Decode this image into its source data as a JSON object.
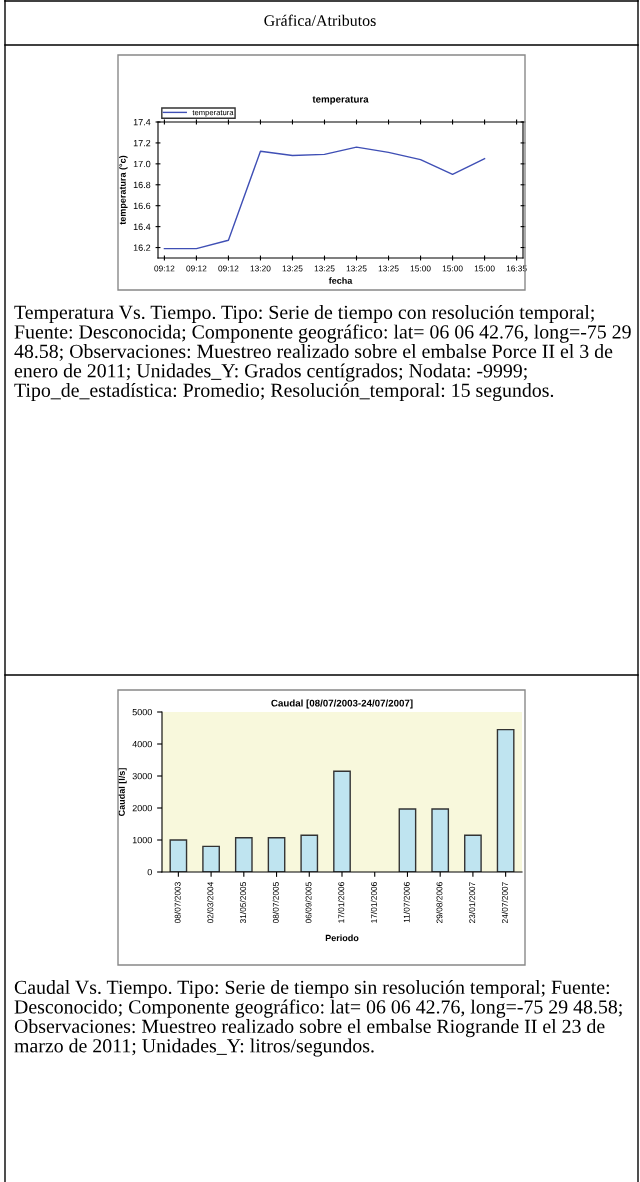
{
  "chart_data": [
    {
      "type": "line",
      "title": "temperatura",
      "xlabel": "fecha",
      "ylabel": "temperatura (°c)",
      "categories": [
        "09:12",
        "09:12",
        "09:12",
        "13:20",
        "13:25",
        "13:25",
        "13:25",
        "13:25",
        "15:00",
        "15:00",
        "15:00",
        "16:35"
      ],
      "series": [
        {
          "name": "temperatura",
          "color": "#3f4fb5",
          "values": [
            16.19,
            16.19,
            16.27,
            17.12,
            17.08,
            17.09,
            17.16,
            17.11,
            17.04,
            16.9,
            17.05,
            null
          ]
        }
      ],
      "ylim": [
        16.1,
        17.4
      ],
      "yticks": [
        {
          "value": 16.2,
          "label": "16.2"
        },
        {
          "value": 16.4,
          "label": "16.4"
        },
        {
          "value": 16.6,
          "label": "16.6"
        },
        {
          "value": 16.8,
          "label": "16.8"
        },
        {
          "value": 17.0,
          "label": "17.0"
        },
        {
          "value": 17.2,
          "label": "17.2"
        },
        {
          "value": 17.4,
          "label": "17.4"
        }
      ],
      "legend": "top left",
      "grid": false,
      "annotations": [
        "Gráfica/Atributos",
        "Temperatura Vs. Tiempo. Tipo: Serie de tiempo con resolución temporal; Fuente: Desconocida; Componente geográfico: lat= 06 06 42.76, long=-75 29 48.58; Observaciones: Muestreo realizado sobre el embalse Porce II el 3 de enero de 2011; Unidades_Y: Grados centígrados; Nodata: -9999; Tipo_de_estadística: Promedio; Resolución_temporal: 15 segundos."
      ]
    },
    {
      "type": "bar",
      "title": "Caudal [08/07/2003-24/07/2007]",
      "xlabel": "Periodo",
      "ylabel": "Caudal [l/s]",
      "categories": [
        "08/07/2003",
        "02/03/2004",
        "31/05/2005",
        "08/07/2005",
        "06/09/2005",
        "17/01/2006",
        "17/01/2006",
        "11/07/2006",
        "29/08/2006",
        "23/01/2007",
        "24/07/2007"
      ],
      "series": [
        {
          "color": "#bfe4f0",
          "values": [
            1000,
            800,
            1070,
            1070,
            1150,
            3150,
            null,
            1970,
            1970,
            1150,
            4450
          ]
        }
      ],
      "ylim": [
        0,
        5000
      ],
      "yticks": [
        0,
        1000,
        2000,
        3000,
        4000,
        5000
      ],
      "grid": false,
      "annotations": [
        "Caudal Vs. Tiempo. Tipo: Serie de tiempo sin resolución temporal; Fuente: Desconocido; Componente geográfico: lat= 06 06 42.76, long=-75 29 48.58; Observaciones: Muestreo realizado sobre el embalse Riogrande II el 23 de marzo de 2011; Unidades_Y: litros/segundos."
      ]
    }
  ]
}
